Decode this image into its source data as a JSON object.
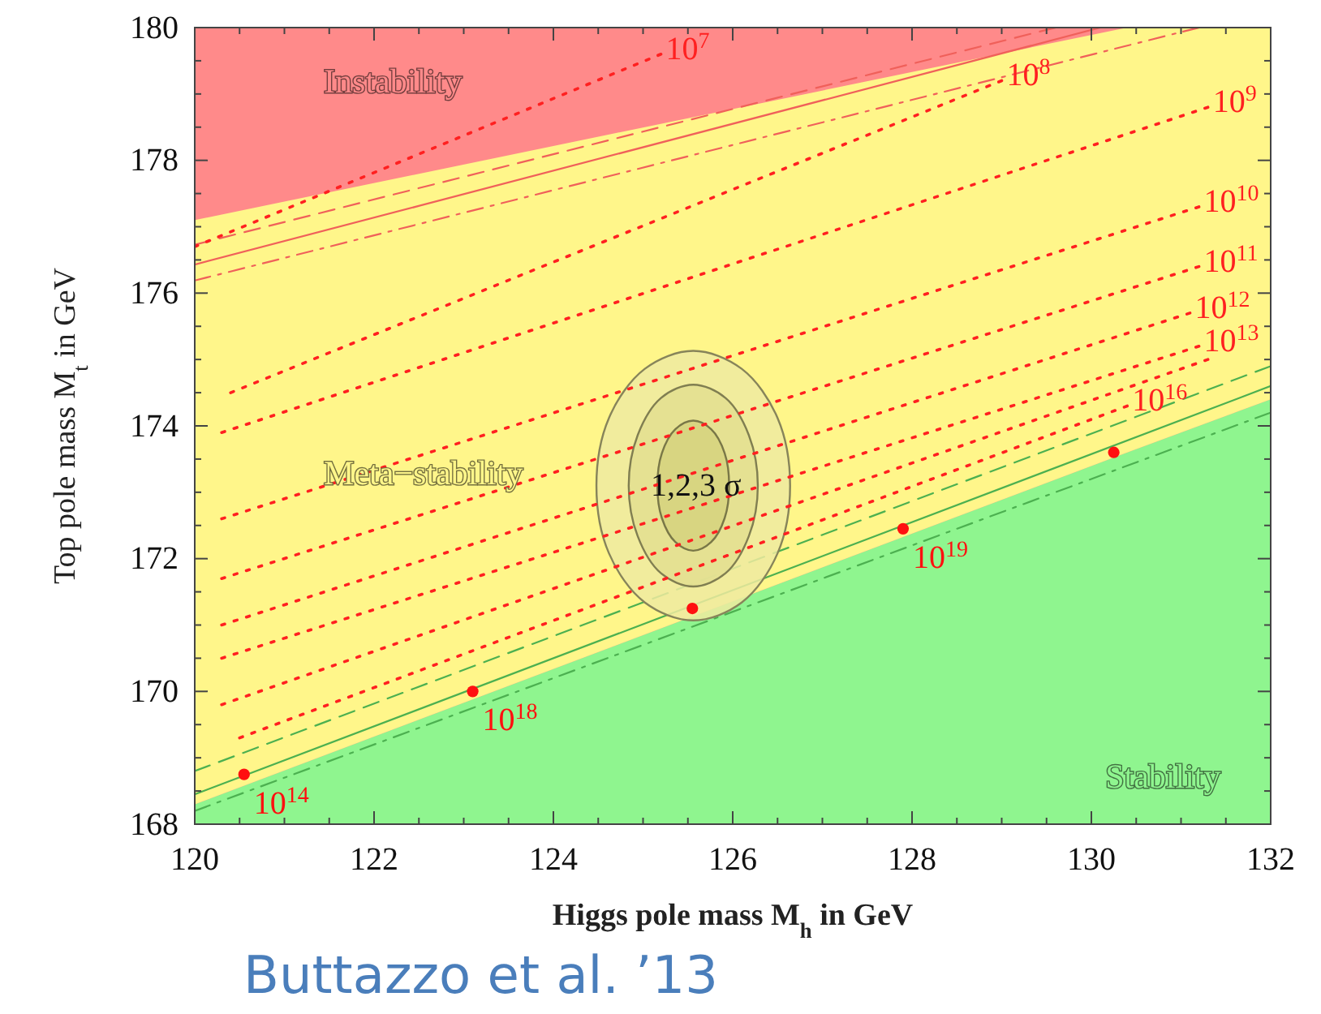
{
  "chart_data": {
    "type": "line",
    "xlabel": "Higgs pole mass M$_{h}$ in GeV",
    "ylabel": "Top pole mass M$_{t}$ in GeV",
    "xlim": [
      120,
      132
    ],
    "ylim": [
      168,
      180
    ],
    "xticks": [
      120,
      {
        "value": 120.5,
        "label": null
      },
      {
        "value": 121,
        "label": null
      },
      {
        "value": 121.5,
        "label": null
      },
      122,
      {
        "value": 122.5,
        "label": null
      },
      {
        "value": 123,
        "label": null
      },
      {
        "value": 123.5,
        "label": null
      },
      124,
      {
        "value": 124.5,
        "label": null
      },
      {
        "value": 125,
        "label": null
      },
      {
        "value": 125.5,
        "label": null
      },
      126,
      {
        "value": 126.5,
        "label": null
      },
      {
        "value": 127,
        "label": null
      },
      {
        "value": 127.5,
        "label": null
      },
      128,
      {
        "value": 128.5,
        "label": null
      },
      {
        "value": 129,
        "label": null
      },
      {
        "value": 129.5,
        "label": null
      },
      130,
      {
        "value": 130.5,
        "label": null
      },
      {
        "value": 131,
        "label": null
      },
      {
        "value": 131.5,
        "label": null
      },
      132
    ],
    "yticks": [
      168,
      {
        "value": 168.5,
        "label": null
      },
      {
        "value": 169,
        "label": null
      },
      {
        "value": 169.5,
        "label": null
      },
      170,
      {
        "value": 170.5,
        "label": null
      },
      {
        "value": 171,
        "label": null
      },
      {
        "value": 171.5,
        "label": null
      },
      172,
      {
        "value": 172.5,
        "label": null
      },
      {
        "value": 173,
        "label": null
      },
      {
        "value": 173.5,
        "label": null
      },
      174,
      {
        "value": 174.5,
        "label": null
      },
      {
        "value": 175,
        "label": null
      },
      {
        "value": 175.5,
        "label": null
      },
      176,
      {
        "value": 176.5,
        "label": null
      },
      {
        "value": 177,
        "label": null
      },
      {
        "value": 177.5,
        "label": null
      },
      178,
      {
        "value": 178.5,
        "label": null
      },
      {
        "value": 179,
        "label": null
      },
      {
        "value": 179.5,
        "label": null
      },
      180
    ],
    "bands": [
      {
        "axis": "y",
        "from": 168,
        "to": 180,
        "label": "Instability",
        "color": "#ff8a8a"
      }
    ],
    "series": [
      {
        "type": "area",
        "name": "Stability",
        "color": "#8ff58f",
        "x": [
          120,
          130.4,
          132
        ],
        "values": [
          168.3,
          173.6,
          174.4
        ]
      },
      {
        "type": "area",
        "name": "Meta−stability",
        "color": "#fff68a",
        "x": [
          120,
          130.4,
          132
        ],
        "values": [
          177.1,
          180,
          180
        ]
      },
      {
        "color": "#f0605a",
        "line_style": "solid",
        "x": [
          120,
          130.1
        ],
        "values": [
          176.43,
          180
        ]
      },
      {
        "color": "#f0605a",
        "line_style": "dashed",
        "x": [
          120,
          129.6
        ],
        "values": [
          176.73,
          180
        ]
      },
      {
        "color": "#f0605a",
        "line_style": "dashdot",
        "x": [
          120,
          131.2
        ],
        "values": [
          176.19,
          180
        ]
      },
      {
        "color": "#4cb050",
        "line_style": "solid",
        "x": [
          120,
          132
        ],
        "values": [
          168.45,
          174.6
        ]
      },
      {
        "color": "#4cb050",
        "line_style": "dashed",
        "x": [
          120,
          132
        ],
        "values": [
          168.8,
          174.9
        ]
      },
      {
        "color": "#4cb050",
        "line_style": "dashdot",
        "x": [
          120,
          132
        ],
        "values": [
          168.2,
          174.2
        ]
      },
      {
        "type": "area",
        "color": "#eeeaa0",
        "x": [
          126.64,
          126.5,
          126.1,
          125.56,
          125.02,
          124.62,
          124.48,
          124.62,
          125.02,
          125.56,
          126.1,
          126.5,
          126.64
        ],
        "values": [
          173.1,
          174.12,
          174.86,
          175.13,
          174.86,
          174.12,
          173.1,
          172.08,
          171.34,
          171.07,
          171.34,
          172.08,
          173.1
        ]
      },
      {
        "type": "area",
        "color": "#e3df90",
        "x": [
          126.28,
          126.18,
          125.92,
          125.56,
          125.2,
          124.94,
          124.84,
          124.94,
          125.2,
          125.56,
          125.92,
          126.18,
          126.28
        ],
        "values": [
          173.1,
          173.86,
          174.42,
          174.62,
          174.42,
          173.86,
          173.1,
          172.34,
          171.78,
          171.58,
          171.78,
          172.34,
          173.1
        ]
      },
      {
        "type": "area",
        "name": "1,2,3 σ",
        "color": "#d6d27e",
        "x": [
          125.96,
          125.91,
          125.76,
          125.56,
          125.36,
          125.21,
          125.16,
          125.21,
          125.36,
          125.56,
          125.76,
          125.91,
          125.96
        ],
        "values": [
          173.1,
          173.59,
          173.95,
          174.08,
          173.95,
          173.59,
          173.1,
          172.61,
          172.25,
          172.12,
          172.25,
          172.61,
          173.1
        ]
      },
      {
        "name": "10$^{7}$",
        "color": "#ff2020",
        "line_style": "dotted",
        "x": [
          120,
          125.2
        ],
        "values": [
          176.7,
          179.6
        ]
      },
      {
        "name": "10$^{8}$",
        "color": "#ff2020",
        "line_style": "dotted",
        "x": [
          120.4,
          129
        ],
        "values": [
          174.5,
          179.2
        ]
      },
      {
        "name": "10$^{9}$",
        "color": "#ff2020",
        "line_style": "dotted",
        "x": [
          120.3,
          131.3
        ],
        "values": [
          173.9,
          178.8
        ]
      },
      {
        "name": "10$^{10}$",
        "color": "#ff2020",
        "line_style": "dotted",
        "x": [
          120.3,
          131.2
        ],
        "values": [
          172.6,
          177.3
        ]
      },
      {
        "name": "10$^{11}$",
        "color": "#ff2020",
        "line_style": "dotted",
        "x": [
          120.3,
          131.2
        ],
        "values": [
          171.7,
          176.4
        ]
      },
      {
        "name": "10$^{12}$",
        "color": "#ff2020",
        "line_style": "dotted",
        "x": [
          120.3,
          131.1
        ],
        "values": [
          171,
          175.7
        ]
      },
      {
        "name": "10$^{13}$",
        "color": "#ff2020",
        "line_style": "dotted",
        "x": [
          120.3,
          131.2
        ],
        "values": [
          170.5,
          175.2
        ]
      },
      {
        "color": "#ff2020",
        "line_style": "dotted",
        "x": [
          120.3,
          131.3
        ],
        "values": [
          169.8,
          175
        ]
      },
      {
        "name": "10$^{16}$",
        "color": "#ff2020",
        "line_style": "dotted",
        "x": [
          120.5,
          130.4
        ],
        "values": [
          169.3,
          174.3
        ]
      },
      {
        "type": "scatter",
        "name": "10$^{14}$",
        "color": "#ff1010",
        "marker": "circle",
        "x": [
          120.55
        ],
        "values": [
          168.75
        ]
      },
      {
        "type": "scatter",
        "name": "10$^{18}$",
        "color": "#ff1010",
        "marker": "circle",
        "x": [
          123.1
        ],
        "values": [
          170
        ]
      },
      {
        "type": "scatter",
        "color": "#ff1010",
        "marker": "circle",
        "x": [
          125.55
        ],
        "values": [
          171.25
        ]
      },
      {
        "type": "scatter",
        "name": "10$^{19}$",
        "color": "#ff1010",
        "marker": "circle",
        "x": [
          127.9
        ],
        "values": [
          172.45
        ]
      },
      {
        "type": "scatter",
        "color": "#ff1010",
        "marker": "circle",
        "x": [
          130.25
        ],
        "values": [
          173.6
        ]
      }
    ],
    "annotations": [
      "Buttazzo et al. ’13"
    ]
  }
}
